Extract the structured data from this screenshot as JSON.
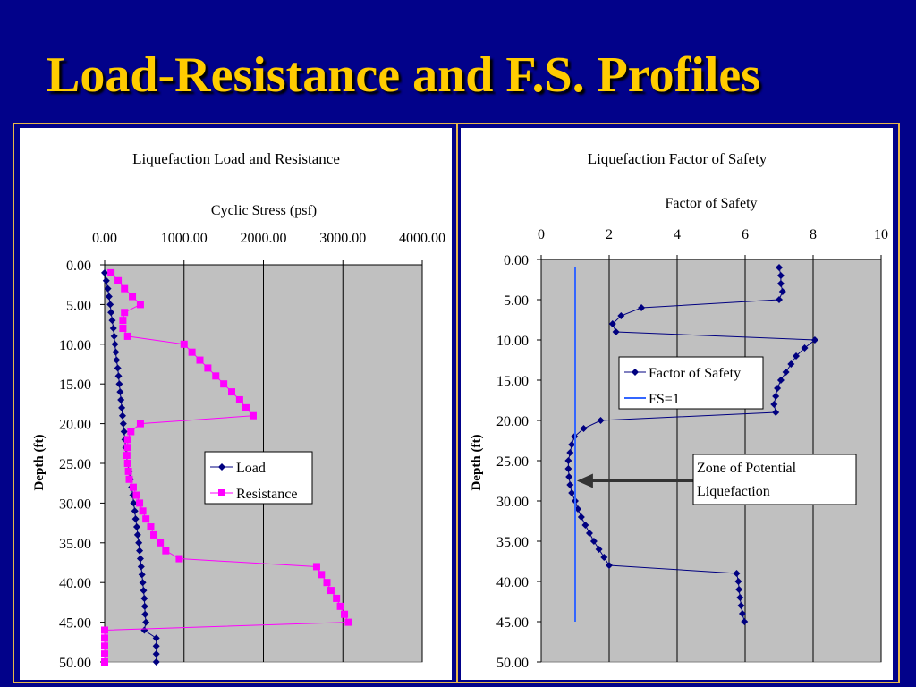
{
  "slide_title": "Load-Resistance and F.S. Profiles",
  "chart_data": [
    {
      "type": "line",
      "title": "Liquefaction Load and Resistance",
      "xlabel": "Cyclic Stress (psf)",
      "ylabel": "Depth (ft)",
      "xlim": [
        0,
        4000
      ],
      "ylim": [
        0,
        50
      ],
      "x_ticks": [
        "0.00",
        "1000.00",
        "2000.00",
        "3000.00",
        "4000.00"
      ],
      "y_ticks": [
        "0.00",
        "5.00",
        "10.00",
        "15.00",
        "20.00",
        "25.00",
        "30.00",
        "35.00",
        "40.00",
        "45.00",
        "50.00"
      ],
      "axis_position": "x-top, y-reversed",
      "grid": true,
      "legend": "center-right",
      "series": [
        {
          "name": "Load",
          "color": "#000080",
          "marker": "diamond",
          "points": [
            [
              0,
              1
            ],
            [
              20,
              2
            ],
            [
              40,
              3
            ],
            [
              55,
              4
            ],
            [
              70,
              5
            ],
            [
              80,
              6
            ],
            [
              95,
              7
            ],
            [
              110,
              8
            ],
            [
              120,
              9
            ],
            [
              130,
              10
            ],
            [
              140,
              11
            ],
            [
              150,
              12
            ],
            [
              165,
              13
            ],
            [
              175,
              14
            ],
            [
              185,
              15
            ],
            [
              195,
              16
            ],
            [
              205,
              17
            ],
            [
              215,
              18
            ],
            [
              225,
              19
            ],
            [
              235,
              20
            ],
            [
              245,
              21
            ],
            [
              255,
              22
            ],
            [
              265,
              23
            ],
            [
              275,
              24
            ],
            [
              290,
              25
            ],
            [
              310,
              26
            ],
            [
              325,
              27
            ],
            [
              340,
              28
            ],
            [
              355,
              29
            ],
            [
              365,
              30
            ],
            [
              380,
              31
            ],
            [
              390,
              32
            ],
            [
              405,
              33
            ],
            [
              415,
              34
            ],
            [
              430,
              35
            ],
            [
              440,
              36
            ],
            [
              450,
              37
            ],
            [
              460,
              38
            ],
            [
              470,
              39
            ],
            [
              480,
              40
            ],
            [
              490,
              41
            ],
            [
              500,
              42
            ],
            [
              505,
              43
            ],
            [
              510,
              44
            ],
            [
              520,
              45
            ],
            [
              500,
              46
            ],
            [
              650,
              47
            ],
            [
              650,
              48
            ],
            [
              650,
              49
            ],
            [
              650,
              50
            ]
          ]
        },
        {
          "name": "Resistance",
          "color": "#ff00ff",
          "marker": "square",
          "points": [
            [
              80,
              1
            ],
            [
              170,
              2
            ],
            [
              250,
              3
            ],
            [
              350,
              4
            ],
            [
              450,
              5
            ],
            [
              250,
              6
            ],
            [
              230,
              7
            ],
            [
              230,
              8
            ],
            [
              290,
              9
            ],
            [
              1000,
              10
            ],
            [
              1100,
              11
            ],
            [
              1200,
              12
            ],
            [
              1300,
              13
            ],
            [
              1400,
              14
            ],
            [
              1500,
              15
            ],
            [
              1600,
              16
            ],
            [
              1700,
              17
            ],
            [
              1780,
              18
            ],
            [
              1870,
              19
            ],
            [
              450,
              20
            ],
            [
              330,
              21
            ],
            [
              290,
              22
            ],
            [
              290,
              23
            ],
            [
              280,
              24
            ],
            [
              290,
              25
            ],
            [
              300,
              26
            ],
            [
              310,
              27
            ],
            [
              360,
              28
            ],
            [
              400,
              29
            ],
            [
              440,
              30
            ],
            [
              480,
              31
            ],
            [
              520,
              32
            ],
            [
              580,
              33
            ],
            [
              620,
              34
            ],
            [
              700,
              35
            ],
            [
              770,
              36
            ],
            [
              940,
              37
            ],
            [
              2670,
              38
            ],
            [
              2730,
              39
            ],
            [
              2800,
              40
            ],
            [
              2850,
              41
            ],
            [
              2920,
              42
            ],
            [
              2970,
              43
            ],
            [
              3020,
              44
            ],
            [
              3070,
              45
            ],
            [
              0,
              46
            ],
            [
              0,
              47
            ],
            [
              0,
              48
            ],
            [
              0,
              49
            ],
            [
              0,
              50
            ]
          ]
        }
      ]
    },
    {
      "type": "line",
      "title": "Liquefaction Factor of Safety",
      "xlabel": "Factor of Safety",
      "ylabel": "Depth (ft)",
      "xlim": [
        0,
        10
      ],
      "ylim": [
        0,
        50
      ],
      "x_ticks": [
        "0",
        "2",
        "4",
        "6",
        "8",
        "10"
      ],
      "y_ticks": [
        "0.00",
        "5.00",
        "10.00",
        "15.00",
        "20.00",
        "25.00",
        "30.00",
        "35.00",
        "40.00",
        "45.00",
        "50.00"
      ],
      "axis_position": "x-top, y-reversed",
      "grid": true,
      "legend": "top-center",
      "annotation": {
        "text_line1": "Zone of Potential",
        "text_line2": "Liquefaction",
        "arrow_target_depth": 27.5
      },
      "series": [
        {
          "name": "Factor of Safety",
          "color": "#000080",
          "marker": "diamond",
          "points": [
            [
              7.0,
              1
            ],
            [
              7.05,
              2
            ],
            [
              7.05,
              3
            ],
            [
              7.1,
              4
            ],
            [
              7.0,
              5
            ],
            [
              2.95,
              6
            ],
            [
              2.35,
              7
            ],
            [
              2.1,
              8
            ],
            [
              2.2,
              9
            ],
            [
              8.05,
              10
            ],
            [
              7.75,
              11
            ],
            [
              7.5,
              12
            ],
            [
              7.35,
              13
            ],
            [
              7.2,
              14
            ],
            [
              7.05,
              15
            ],
            [
              6.95,
              16
            ],
            [
              6.9,
              17
            ],
            [
              6.85,
              18
            ],
            [
              6.9,
              19
            ],
            [
              1.75,
              20
            ],
            [
              1.25,
              21
            ],
            [
              0.98,
              22
            ],
            [
              0.9,
              23
            ],
            [
              0.85,
              24
            ],
            [
              0.8,
              25
            ],
            [
              0.8,
              26
            ],
            [
              0.82,
              27
            ],
            [
              0.85,
              28
            ],
            [
              0.9,
              29
            ],
            [
              1.0,
              30
            ],
            [
              1.08,
              31
            ],
            [
              1.18,
              32
            ],
            [
              1.3,
              33
            ],
            [
              1.42,
              34
            ],
            [
              1.55,
              35
            ],
            [
              1.7,
              36
            ],
            [
              1.85,
              37
            ],
            [
              2.0,
              38
            ],
            [
              5.75,
              39
            ],
            [
              5.8,
              40
            ],
            [
              5.82,
              41
            ],
            [
              5.85,
              42
            ],
            [
              5.88,
              43
            ],
            [
              5.92,
              44
            ],
            [
              5.98,
              45
            ]
          ]
        },
        {
          "name": "FS=1",
          "color": "#3366ff",
          "marker": "none",
          "points": [
            [
              1,
              1
            ],
            [
              1,
              45
            ]
          ]
        }
      ]
    }
  ]
}
